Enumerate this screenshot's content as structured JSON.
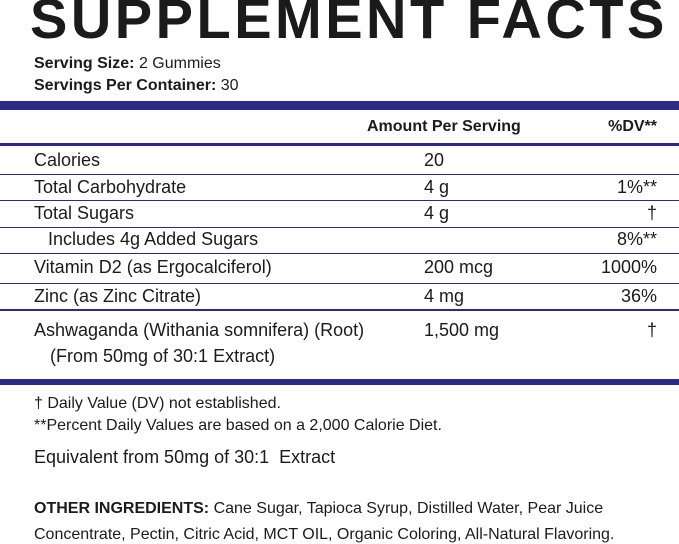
{
  "title": "SUPPLEMENT FACTS",
  "serving": [
    {
      "label": "Serving Size:",
      "value": "2 Gummies"
    },
    {
      "label": "Servings Per Container:",
      "value": "30"
    }
  ],
  "header": {
    "amount": "Amount Per Serving",
    "dv": "%DV**"
  },
  "rows": [
    {
      "name": "Calories",
      "amount": "20"
    },
    {
      "name": "Total Carbohydrate",
      "amount": "4 g",
      "dv": "1%**"
    },
    {
      "name": "Total Sugars",
      "amount": "4 g",
      "dv": "†"
    },
    {
      "name": "Includes 4g Added Sugars",
      "dv": "8%**"
    },
    {
      "name": "Vitamin D2 (as Ergocalciferol)",
      "amount": "200 mcg",
      "dv": "1000%"
    },
    {
      "name": "Zinc (as Zinc Citrate)",
      "amount": "4 mg",
      "dv": "36%"
    },
    {
      "name": "Ashwaganda (Withania somnifera) (Root)",
      "sub": "(From 50mg of 30:1 Extract)",
      "amount": "1,500 mg",
      "dv": "†"
    }
  ],
  "footnotes": [
    "† Daily Value (DV) not established.",
    "**Percent Daily Values are based on a 2,000 Calorie Diet."
  ],
  "equivalent": "Equivalent from 50mg of 30:1  Extract",
  "other_ingredients": {
    "label": "OTHER INGREDIENTS:",
    "text": "Cane Sugar, Tapioca Syrup, Distilled Water, Pear Juice Concentrate, Pectin, Citric Acid, MCT OIL, Organic Coloring, All-Natural Flavoring."
  }
}
